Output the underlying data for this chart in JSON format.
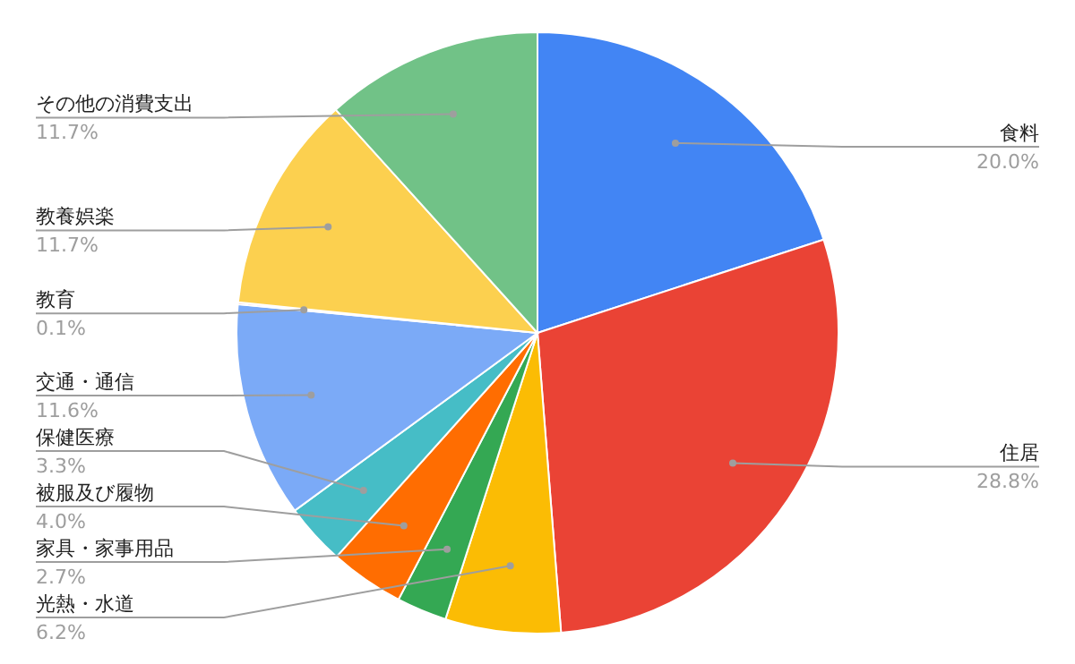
{
  "chart_data": {
    "type": "pie",
    "categories": [
      "食料",
      "住居",
      "光熱・水道",
      "家具・家事用品",
      "被服及び履物",
      "保健医療",
      "交通・通信",
      "教育",
      "教養娯楽",
      "その他の消費支出"
    ],
    "values": [
      20.0,
      28.8,
      6.2,
      2.7,
      4.0,
      3.3,
      11.6,
      0.1,
      11.7,
      11.7
    ],
    "colors": [
      "#4285f4",
      "#ea4335",
      "#fbbc04",
      "#34a853",
      "#ff6d01",
      "#46bdc6",
      "#7baaf7",
      "#f07b72",
      "#fcd04f",
      "#71c287"
    ],
    "value_labels": [
      "20.0%",
      "28.8%",
      "6.2%",
      "2.7%",
      "4.0%",
      "3.3%",
      "11.6%",
      "0.1%",
      "11.7%",
      "11.7%"
    ],
    "legend": false
  }
}
